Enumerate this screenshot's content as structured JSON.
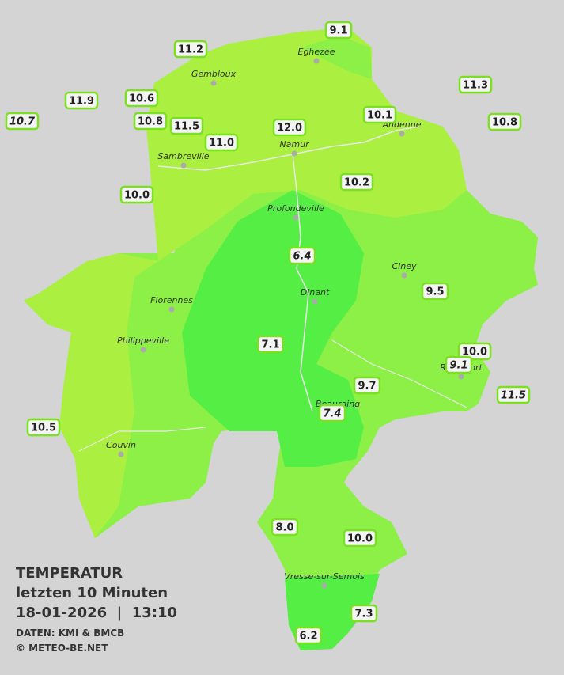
{
  "title": "TEMPERATUR",
  "subtitle": "letzten 10 Minuten",
  "datetime": "18-01-2026  |  13:10",
  "source": "DATEN: KMI & BMCB",
  "copyright": "© METEO-BE.NET",
  "cities": [
    "Eghezee",
    "Gembloux",
    "Andenne",
    "Namur",
    "Sambreville",
    "Profondeville",
    "Ciney",
    "Florennes",
    "Dinant",
    "Philippeville",
    "Rochefort",
    "Beauraing",
    "Couvin",
    "Vresse-sur-Semois"
  ],
  "readings": [
    {
      "label": "9.1",
      "italic": false
    },
    {
      "label": "11.2",
      "italic": false
    },
    {
      "label": "11.9",
      "italic": false
    },
    {
      "label": "10.7",
      "italic": true
    },
    {
      "label": "10.6",
      "italic": false
    },
    {
      "label": "10.8",
      "italic": false
    },
    {
      "label": "11.5",
      "italic": false
    },
    {
      "label": "11.0",
      "italic": false
    },
    {
      "label": "12.0",
      "italic": false
    },
    {
      "label": "10.1",
      "italic": false
    },
    {
      "label": "11.3",
      "italic": false
    },
    {
      "label": "10.8",
      "italic": false
    },
    {
      "label": "10.0",
      "italic": false
    },
    {
      "label": "10.2",
      "italic": false
    },
    {
      "label": "6.4",
      "italic": true
    },
    {
      "label": "9.5",
      "italic": false
    },
    {
      "label": "7.1",
      "italic": false
    },
    {
      "label": "10.0",
      "italic": false
    },
    {
      "label": "9.1",
      "italic": true
    },
    {
      "label": "9.7",
      "italic": false
    },
    {
      "label": "11.5",
      "italic": true
    },
    {
      "label": "7.4",
      "italic": true
    },
    {
      "label": "10.5",
      "italic": false
    },
    {
      "label": "8.0",
      "italic": false
    },
    {
      "label": "10.0",
      "italic": false
    },
    {
      "label": "7.3",
      "italic": false
    },
    {
      "label": "6.2",
      "italic": false
    }
  ]
}
